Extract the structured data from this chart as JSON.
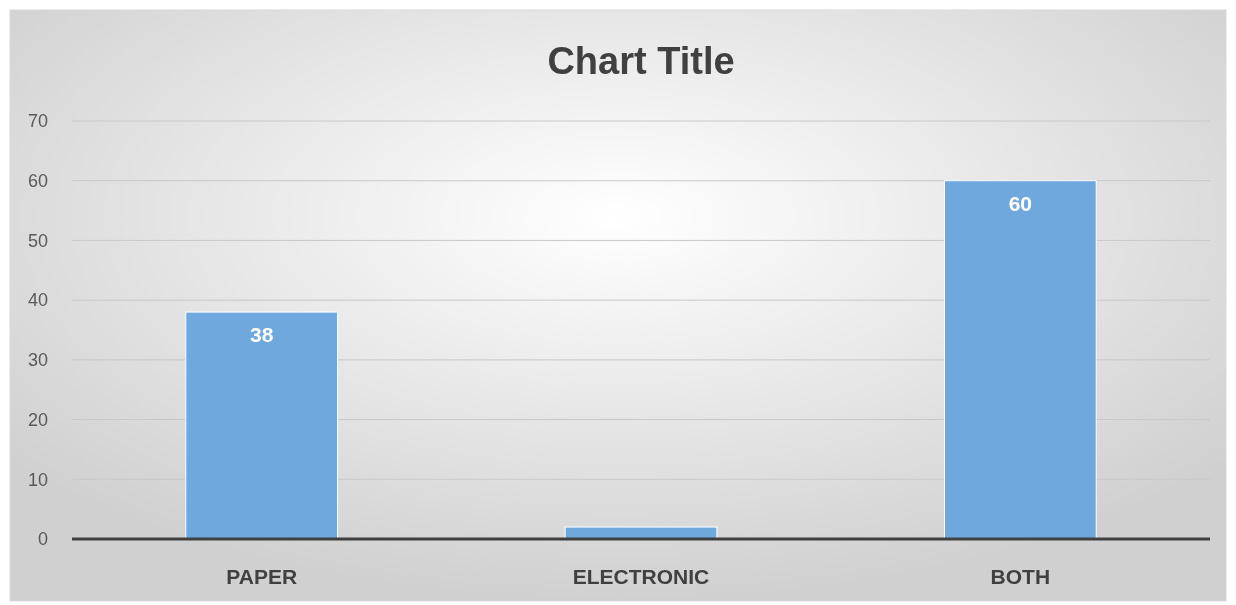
{
  "chart_data": {
    "type": "bar",
    "title": "Chart Title",
    "categories": [
      "PAPER",
      "ELECTRONIC",
      "BOTH"
    ],
    "values": [
      38,
      2,
      60
    ],
    "value_labels": [
      "38",
      null,
      "60"
    ],
    "color": "#6fa8dc",
    "ylim": [
      0,
      70
    ],
    "yticks": [
      0,
      10,
      20,
      30,
      40,
      50,
      60,
      70
    ],
    "grid": "y"
  }
}
